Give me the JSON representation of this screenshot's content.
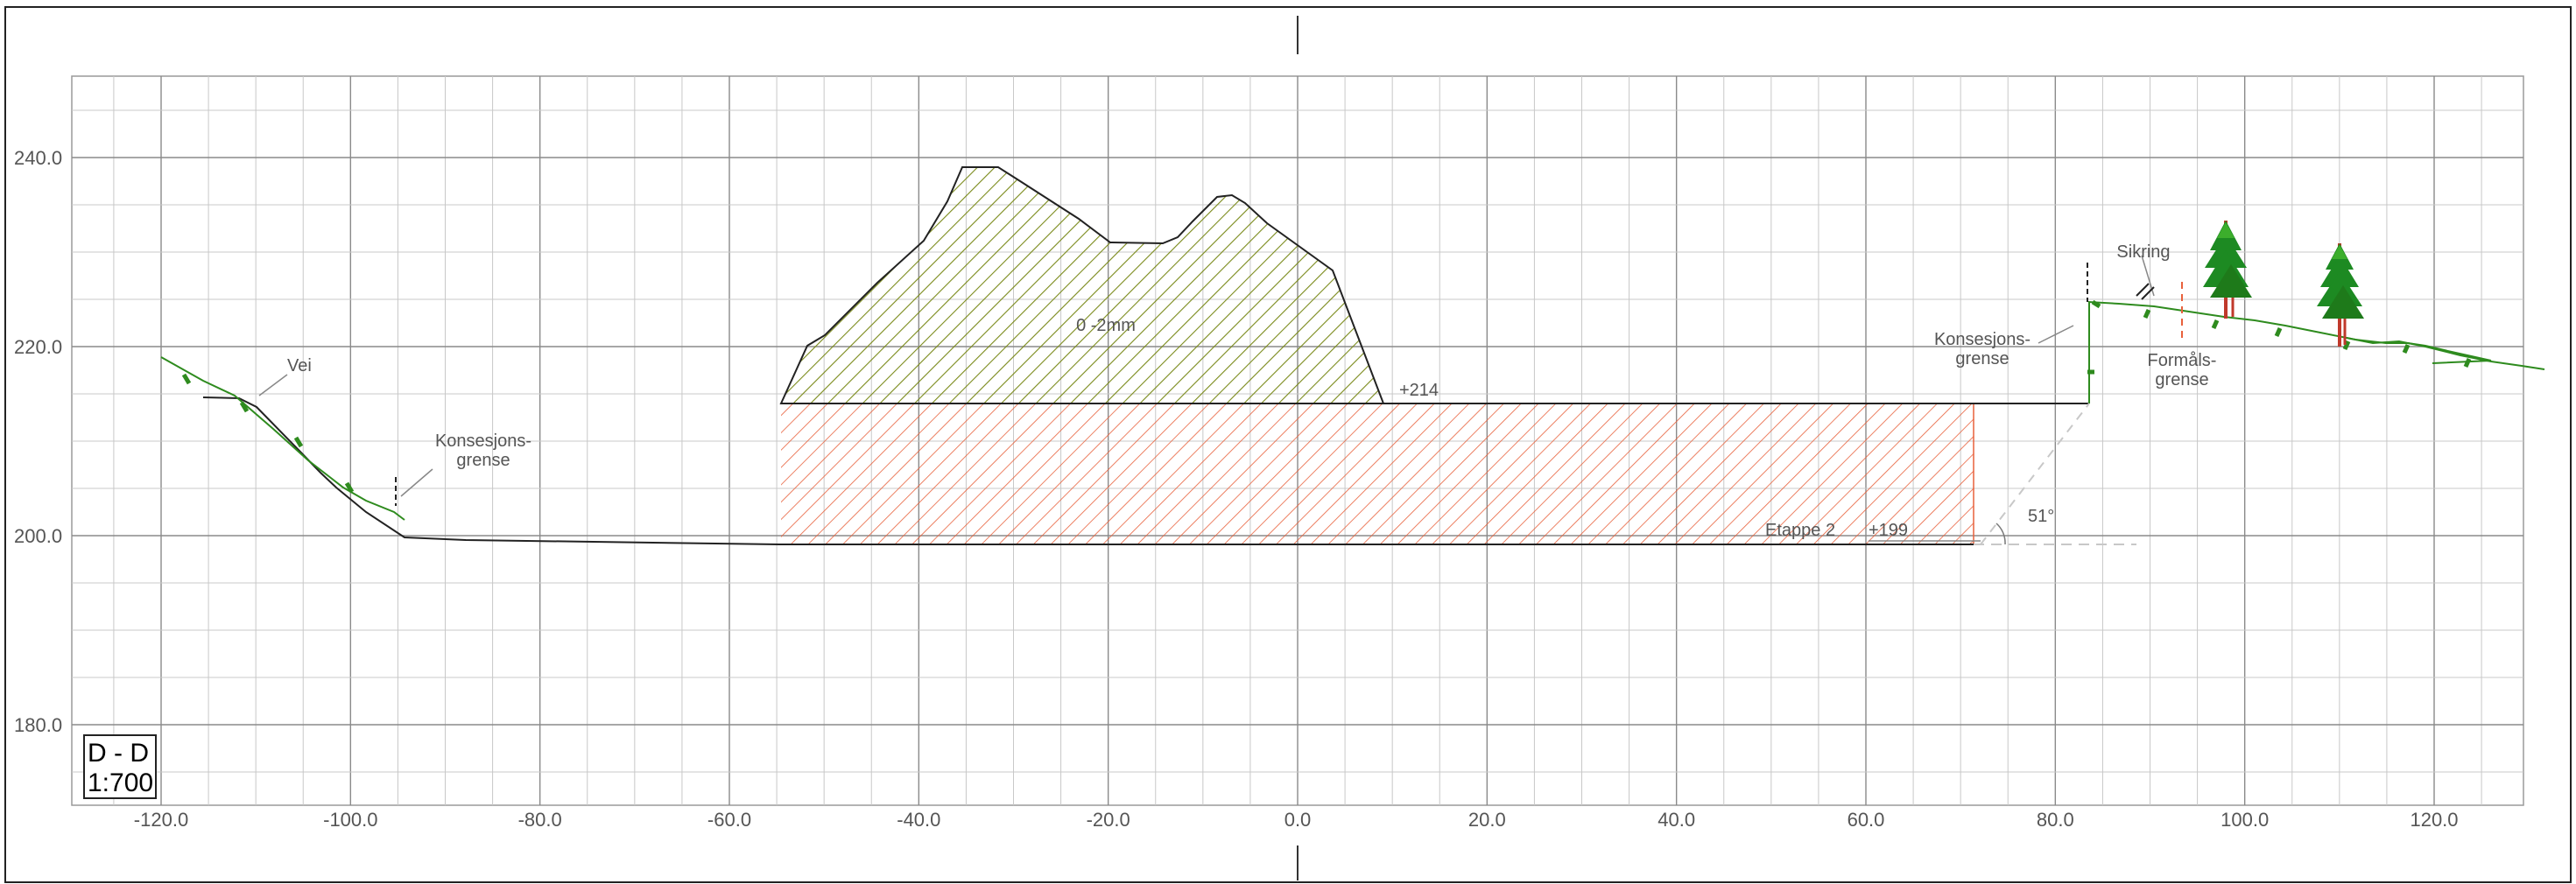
{
  "section": {
    "name": "D - D",
    "scale": "1:700"
  },
  "axes": {
    "x_ticks": [
      "-120.0",
      "-100.0",
      "-80.0",
      "-60.0",
      "-40.0",
      "-20.0",
      "0.0",
      "20.0",
      "40.0",
      "60.0",
      "80.0",
      "100.0",
      "120.0"
    ],
    "y_ticks": [
      "240.0",
      "220.0",
      "200.0",
      "180.0"
    ]
  },
  "labels": {
    "vei": "Vei",
    "konsesjon_left": [
      "Konsesjons-",
      "grense"
    ],
    "pile_material": "0 -2mm",
    "level_top": "+214",
    "level_bottom": "+199",
    "etappe": "Etappe 2",
    "angle": "51°",
    "konsesjon_right": [
      "Konsesjons-",
      "grense"
    ],
    "sikring": "Sikring",
    "formal": [
      "Formåls-",
      "grense"
    ]
  },
  "colors": {
    "grid": "#c8c8c8",
    "grid_major": "#8a8a8a",
    "terrain": "#2e8b1e",
    "pile_hatch": "#7a8a1a",
    "excavation_hatch": "#e8613c",
    "line": "#222222",
    "formal_line": "#e8613c"
  },
  "icons": [
    "tree-icon",
    "tree-icon"
  ]
}
